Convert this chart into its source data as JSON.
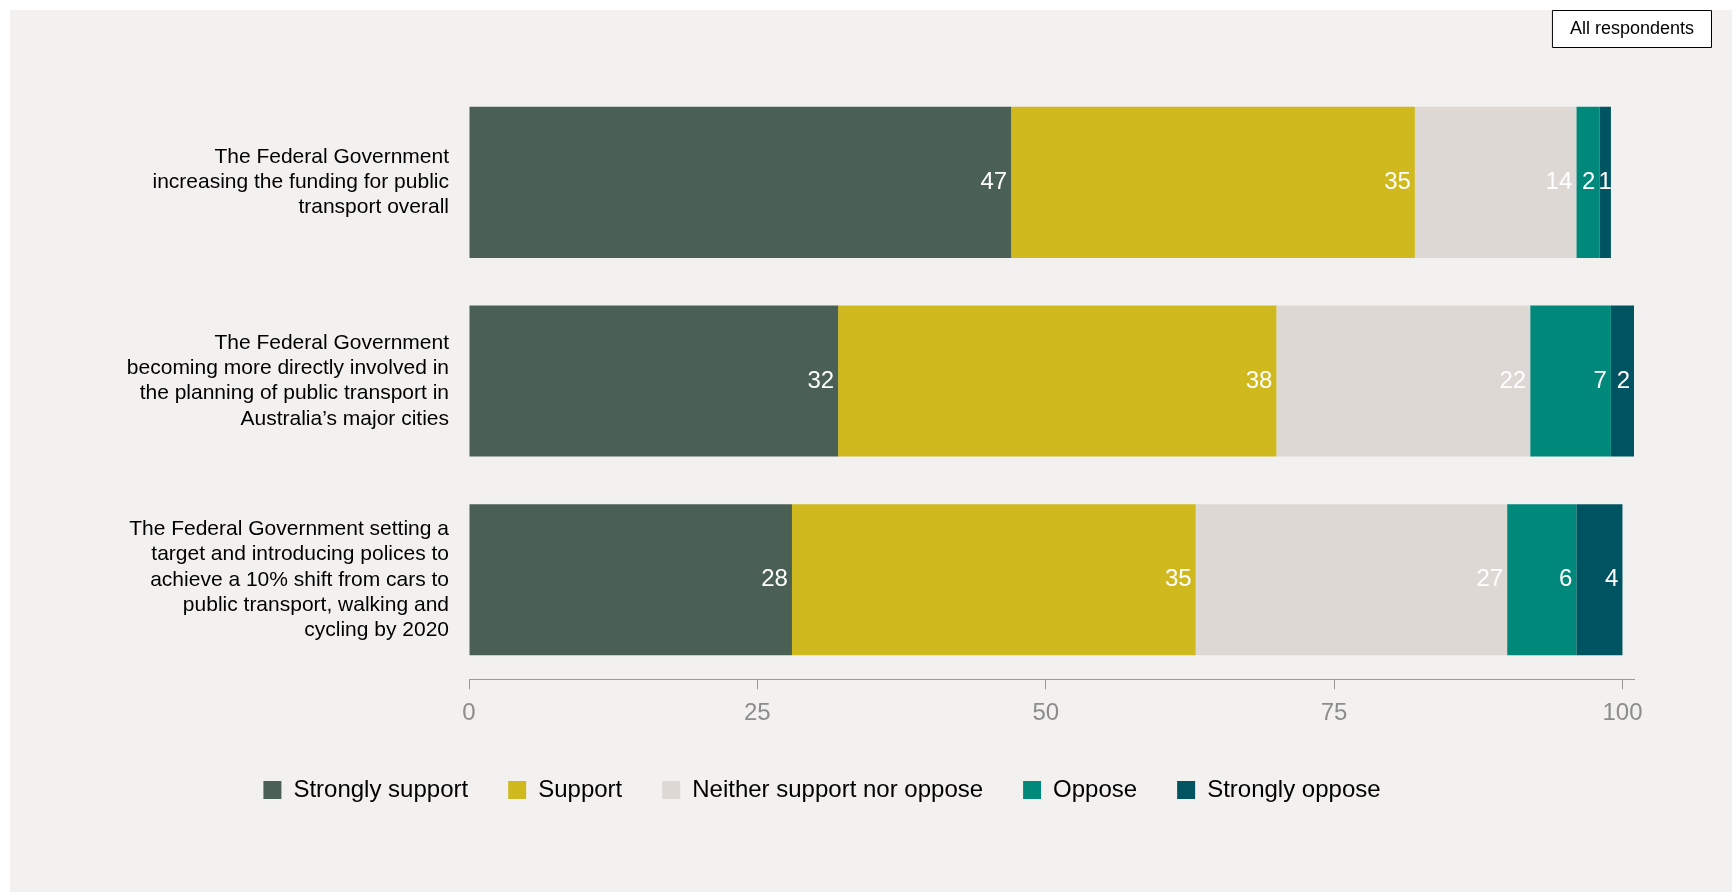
{
  "chart_data": {
    "type": "bar",
    "orientation": "horizontal",
    "stacked": true,
    "categories": [
      "The Federal Government increasing the funding for public transport overall",
      "The Federal Government becoming more directly involved in the planning of public transport in Australia’s major cities",
      "The Federal Government setting a target and introducing polices to achieve a 10% shift from cars to public transport, walking and cycling by 2020"
    ],
    "series": [
      {
        "name": "Strongly support",
        "color": "#4a6054",
        "values": [
          47,
          32,
          28
        ]
      },
      {
        "name": "Support",
        "color": "#cfb91f",
        "values": [
          35,
          38,
          35
        ]
      },
      {
        "name": "Neither support nor oppose",
        "color": "#ddd8d3",
        "values": [
          14,
          22,
          27
        ]
      },
      {
        "name": "Oppose",
        "color": "#00897b",
        "values": [
          2,
          7,
          6
        ]
      },
      {
        "name": "Strongly oppose",
        "color": "#005461",
        "values": [
          1,
          2,
          4
        ]
      }
    ],
    "xlim": [
      0,
      101
    ],
    "xticks": [
      0,
      25,
      50,
      75,
      100
    ],
    "grid": false,
    "legend": "bottom",
    "data_labels": true,
    "annotations": [
      "All respondents"
    ]
  }
}
